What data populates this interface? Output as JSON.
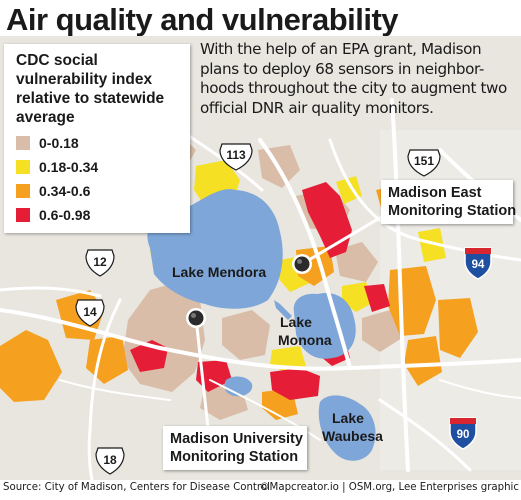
{
  "title": "Air quality and vulnerability",
  "intro": "With the help of an EPA grant, Madison plans to deploy 68 sensors in neighbor-hoods throughout the city to augment two official DNR air quality monitors.",
  "legend": {
    "title": "CDC social vulnerability index relative to statewide average",
    "items": [
      {
        "label": "0-0.18",
        "color": "#d9bda8"
      },
      {
        "label": "0.18-0.34",
        "color": "#f5e024"
      },
      {
        "label": "0.34-0.6",
        "color": "#f5a01e"
      },
      {
        "label": "0.6-0.98",
        "color": "#e51d37"
      }
    ]
  },
  "colors": {
    "water": "#7ea6d8",
    "land": "#e8e6df",
    "road": "#ffffff"
  },
  "lakes": [
    "Lake Mendora",
    "Lake Monona",
    "Lake Waubesa"
  ],
  "stations": [
    {
      "lines": [
        "Madison East",
        "Monitoring Station"
      ]
    },
    {
      "lines": [
        "Madison University",
        "Monitoring Station"
      ]
    }
  ],
  "shields": [
    {
      "number": "113",
      "type": "us-highway"
    },
    {
      "number": "151",
      "type": "us-highway"
    },
    {
      "number": "12",
      "type": "us-highway"
    },
    {
      "number": "14",
      "type": "us-highway"
    },
    {
      "number": "18",
      "type": "us-highway"
    },
    {
      "number": "94",
      "type": "interstate"
    },
    {
      "number": "90",
      "type": "interstate"
    }
  ],
  "footer": {
    "source": "Source: City of Madison, Centers for Disease Control",
    "credit": "©Mapcreator.io | OSM.org, Lee Enterprises graphic"
  }
}
